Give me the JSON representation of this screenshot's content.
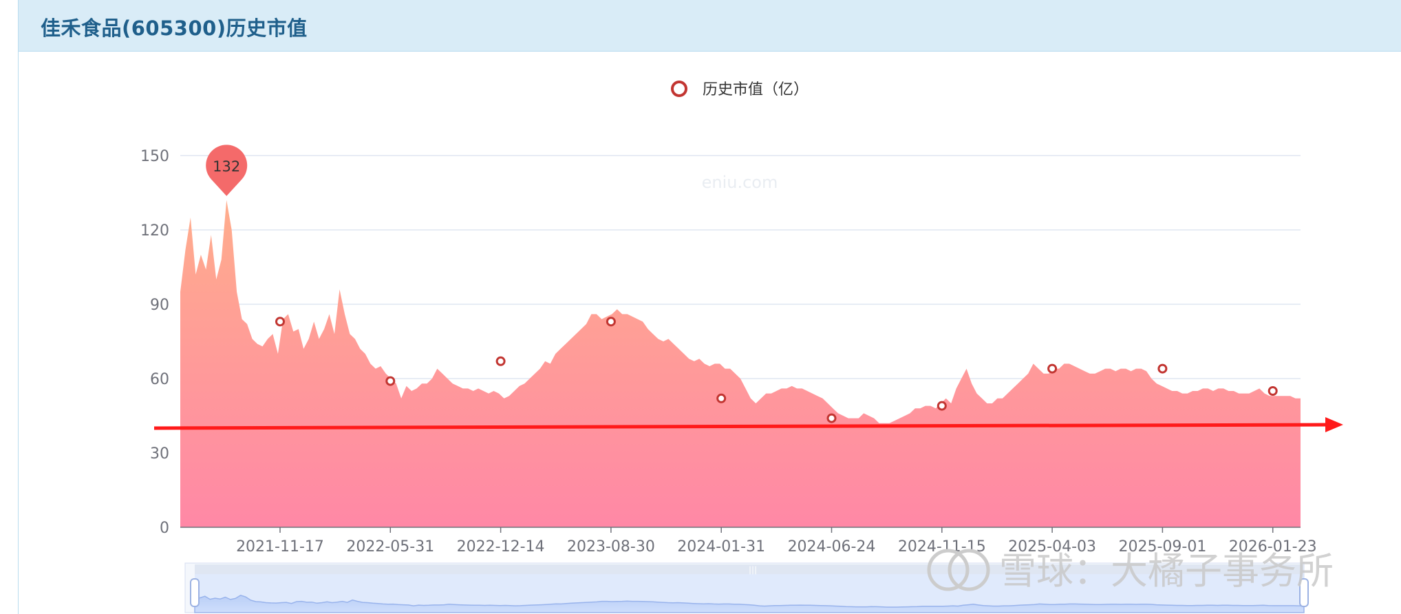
{
  "header": {
    "title": "佳禾食品(605300)历史市值"
  },
  "legend": {
    "label": "历史市值（亿）"
  },
  "watermark": "eniu.com",
  "brand_overlay": "雪球：大橘子事务所",
  "colors": {
    "area_top": "#ffad8c",
    "area_bottom": "#ff88a6",
    "marker": "#c23531",
    "pin": "#f46a6a",
    "arrow": "#ff1a1a",
    "grid": "#dfe6f2",
    "header_bg": "#d9ecf7",
    "title": "#1f5f8b"
  },
  "chart_data": {
    "type": "area",
    "title": "",
    "series_name": "历史市值（亿）",
    "ylim": [
      0,
      150
    ],
    "yticks": [
      0,
      30,
      60,
      90,
      120,
      150
    ],
    "x_tick_labels": [
      "2021-11-17",
      "2022-05-31",
      "2022-12-14",
      "2023-08-30",
      "2024-01-31",
      "2024-06-24",
      "2024-11-15",
      "2025-04-03",
      "2025-09-01",
      "2026-01-23"
    ],
    "max_point": {
      "label": "132",
      "value": 132
    },
    "markers": [
      {
        "date": "2021-11-17",
        "value": 83
      },
      {
        "date": "2022-05-31",
        "value": 59
      },
      {
        "date": "2022-12-14",
        "value": 67
      },
      {
        "date": "2023-08-30",
        "value": 83
      },
      {
        "date": "2024-01-31",
        "value": 52
      },
      {
        "date": "2024-06-24",
        "value": 44
      },
      {
        "date": "2024-11-15",
        "value": 49
      },
      {
        "date": "2025-04-03",
        "value": 64
      },
      {
        "date": "2025-09-01",
        "value": 64
      },
      {
        "date": "2026-01-23",
        "value": 55
      }
    ],
    "series": [
      {
        "name": "历史市值（亿）",
        "values": [
          95,
          112,
          125,
          102,
          110,
          104,
          118,
          100,
          108,
          132,
          120,
          95,
          84,
          82,
          76,
          74,
          73,
          76,
          78,
          70,
          84,
          86,
          79,
          80,
          72,
          76,
          83,
          76,
          80,
          86,
          78,
          96,
          86,
          78,
          76,
          72,
          70,
          66,
          64,
          65,
          62,
          60,
          58,
          52,
          57,
          55,
          56,
          58,
          58,
          60,
          64,
          62,
          60,
          58,
          57,
          56,
          56,
          55,
          56,
          55,
          54,
          55,
          54,
          52,
          53,
          55,
          57,
          58,
          60,
          62,
          64,
          67,
          66,
          70,
          72,
          74,
          76,
          78,
          80,
          82,
          86,
          86,
          84,
          85,
          86,
          88,
          86,
          86,
          85,
          84,
          83,
          80,
          78,
          76,
          75,
          76,
          74,
          72,
          70,
          68,
          67,
          68,
          66,
          65,
          66,
          66,
          64,
          64,
          62,
          60,
          56,
          52,
          50,
          52,
          54,
          54,
          55,
          56,
          56,
          57,
          56,
          56,
          55,
          54,
          53,
          52,
          50,
          48,
          46,
          45,
          44,
          44,
          44,
          46,
          45,
          44,
          42,
          42,
          42,
          43,
          44,
          45,
          46,
          48,
          48,
          49,
          49,
          48,
          50,
          52,
          50,
          56,
          60,
          64,
          58,
          54,
          52,
          50,
          50,
          52,
          52,
          54,
          56,
          58,
          60,
          62,
          66,
          64,
          62,
          62,
          64,
          64,
          66,
          66,
          65,
          64,
          63,
          62,
          62,
          63,
          64,
          64,
          63,
          64,
          64,
          63,
          64,
          64,
          63,
          60,
          58,
          57,
          56,
          55,
          55,
          54,
          54,
          55,
          55,
          56,
          56,
          55,
          56,
          56,
          55,
          55,
          54,
          54,
          54,
          55,
          56,
          54,
          53,
          53,
          53,
          53,
          53,
          52,
          52
        ]
      }
    ],
    "grid": true,
    "legend_position": "top-center"
  }
}
